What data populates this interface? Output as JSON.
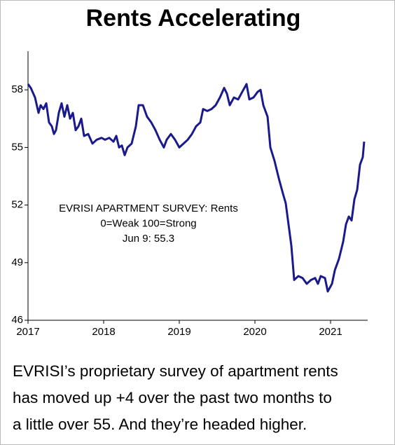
{
  "chart_data": {
    "type": "line",
    "title": "Rents Accelerating",
    "annotation": [
      "EVRISI APARTMENT SURVEY: Rents",
      "0=Weak  100=Strong",
      "Jun 9:  55.3"
    ],
    "caption": [
      "EVRISI’s proprietary survey of apartment rents",
      "has moved up +4 over the past two months to",
      "a little over 55.  And they’re headed higher."
    ],
    "color": "#1a1a8c",
    "xlim": [
      2017,
      2021.5
    ],
    "xticks": [
      2017,
      2018,
      2019,
      2020,
      2021
    ],
    "ylim": [
      46,
      60
    ],
    "yticks": [
      46,
      49,
      52,
      55,
      58
    ],
    "x": [
      2017.0,
      2017.037,
      2017.093,
      2017.139,
      2017.167,
      2017.204,
      2017.241,
      2017.278,
      2017.315,
      2017.343,
      2017.37,
      2017.407,
      2017.444,
      2017.481,
      2017.519,
      2017.556,
      2017.593,
      2017.63,
      2017.667,
      2017.704,
      2017.741,
      2017.796,
      2017.852,
      2017.907,
      2017.972,
      2018.019,
      2018.074,
      2018.13,
      2018.167,
      2018.204,
      2018.241,
      2018.278,
      2018.315,
      2018.37,
      2018.426,
      2018.463,
      2018.519,
      2018.574,
      2018.63,
      2018.685,
      2018.741,
      2018.796,
      2018.833,
      2018.889,
      2018.944,
      2019.0,
      2019.056,
      2019.111,
      2019.167,
      2019.222,
      2019.278,
      2019.315,
      2019.37,
      2019.426,
      2019.481,
      2019.537,
      2019.593,
      2019.63,
      2019.667,
      2019.722,
      2019.778,
      2019.833,
      2019.889,
      2019.926,
      2019.981,
      2020.037,
      2020.074,
      2020.111,
      2020.167,
      2020.204,
      2020.259,
      2020.315,
      2020.37,
      2020.407,
      2020.444,
      2020.481,
      2020.519,
      2020.574,
      2020.63,
      2020.685,
      2020.741,
      2020.796,
      2020.833,
      2020.87,
      2020.926,
      2020.963,
      2021.019,
      2021.056,
      2021.111,
      2021.167,
      2021.204,
      2021.241,
      2021.278,
      2021.315,
      2021.352,
      2021.389,
      2021.426,
      2021.444
    ],
    "values": [
      58.3,
      58.1,
      57.6,
      56.8,
      57.2,
      57.0,
      57.3,
      56.3,
      56.1,
      55.7,
      55.9,
      56.8,
      57.3,
      56.6,
      57.2,
      56.5,
      56.8,
      55.9,
      56.1,
      56.5,
      55.6,
      55.7,
      55.2,
      55.4,
      55.5,
      55.4,
      55.5,
      55.3,
      55.6,
      55.0,
      55.1,
      54.6,
      55.0,
      55.2,
      56.1,
      57.2,
      57.2,
      56.6,
      56.3,
      55.9,
      55.4,
      55.0,
      55.4,
      55.7,
      55.4,
      55.0,
      55.2,
      55.4,
      55.7,
      56.1,
      56.3,
      57.0,
      56.9,
      57.0,
      57.2,
      57.6,
      58.1,
      57.8,
      57.2,
      57.6,
      57.5,
      57.9,
      58.3,
      57.5,
      57.6,
      57.9,
      58.0,
      57.2,
      56.6,
      55.0,
      54.3,
      53.4,
      52.6,
      52.1,
      51.0,
      49.9,
      48.1,
      48.3,
      48.2,
      47.9,
      48.1,
      48.2,
      47.9,
      48.3,
      48.2,
      47.5,
      47.9,
      48.6,
      49.2,
      50.1,
      51.0,
      51.4,
      51.2,
      52.3,
      52.8,
      54.1,
      54.5,
      55.3
    ]
  }
}
